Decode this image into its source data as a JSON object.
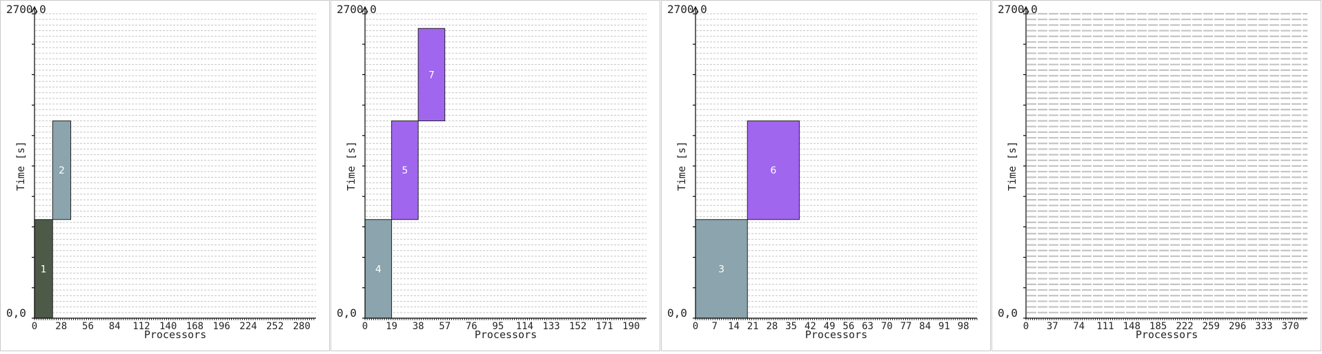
{
  "chart_data": [
    {
      "type": "gantt",
      "xlabel": "Processors",
      "ylabel": "Time [s]",
      "y_top_label": "2700,0",
      "y_bottom_label": "0,0",
      "xlim": [
        0,
        295
      ],
      "ylim": [
        0,
        2700
      ],
      "x_ticks": [
        "0",
        "28",
        "56",
        "84",
        "112",
        "140",
        "168",
        "196",
        "224",
        "252",
        "280"
      ],
      "x_tick_step": 28,
      "grid_lines": 54,
      "jobs": [
        {
          "id": "1",
          "x0": 0,
          "x1": 19,
          "y0": 0,
          "y1": 875,
          "color": "#4d5a48"
        },
        {
          "id": "2",
          "x0": 19,
          "x1": 38,
          "y0": 875,
          "y1": 1750,
          "color": "#8ba4ad"
        }
      ]
    },
    {
      "type": "gantt",
      "xlabel": "Processors",
      "ylabel": "Time [s]",
      "y_top_label": "2700,0",
      "y_bottom_label": "0,0",
      "xlim": [
        0,
        201
      ],
      "ylim": [
        0,
        2700
      ],
      "x_ticks": [
        "0",
        "19",
        "38",
        "57",
        "76",
        "95",
        "114",
        "133",
        "152",
        "171",
        "190"
      ],
      "x_tick_step": 19,
      "grid_lines": 54,
      "jobs": [
        {
          "id": "4",
          "x0": 0,
          "x1": 19,
          "y0": 0,
          "y1": 875,
          "color": "#8ba4ad"
        },
        {
          "id": "5",
          "x0": 19,
          "x1": 38,
          "y0": 875,
          "y1": 1750,
          "color": "#a066ee"
        },
        {
          "id": "7",
          "x0": 38,
          "x1": 57,
          "y0": 1750,
          "y1": 2570,
          "color": "#a066ee"
        }
      ]
    },
    {
      "type": "gantt",
      "xlabel": "Processors",
      "ylabel": "Time [s]",
      "y_top_label": "2700,0",
      "y_bottom_label": "0,0",
      "xlim": [
        0,
        103
      ],
      "ylim": [
        0,
        2700
      ],
      "x_ticks": [
        "0",
        "7",
        "14",
        "21",
        "28",
        "35",
        "42",
        "49",
        "56",
        "63",
        "70",
        "77",
        "84",
        "91",
        "98"
      ],
      "x_tick_step": 7,
      "grid_lines": 54,
      "jobs": [
        {
          "id": "3",
          "x0": 0,
          "x1": 19,
          "y0": 0,
          "y1": 875,
          "color": "#8ba4ad"
        },
        {
          "id": "6",
          "x0": 19,
          "x1": 38,
          "y0": 875,
          "y1": 1750,
          "color": "#a066ee"
        }
      ]
    },
    {
      "type": "gantt",
      "xlabel": "Processors",
      "ylabel": "Time [s]",
      "y_top_label": "2700,0",
      "y_bottom_label": "0,0",
      "xlim": [
        0,
        394
      ],
      "ylim": [
        0,
        2700
      ],
      "x_ticks": [
        "0",
        "37",
        "74",
        "111",
        "148",
        "185",
        "222",
        "259",
        "296",
        "333",
        "370"
      ],
      "x_tick_step": 37,
      "grid_lines": 54,
      "jobs": []
    }
  ]
}
